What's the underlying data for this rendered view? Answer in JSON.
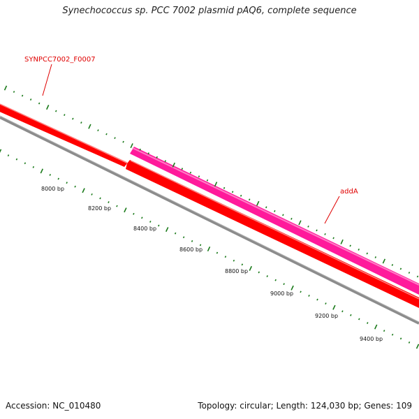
{
  "title": "Synechococcus sp. PCC 7002 plasmid pAQ6, complete sequence",
  "footer": {
    "accession": "Accession: NC_010480",
    "summary": "Topology: circular; Length: 124,030 bp; Genes: 109"
  },
  "colors": {
    "background": "#ffffff",
    "backbone": "#8c8c8c",
    "forward_gene": "#ff0000",
    "reverse_gene": "#ff1a9b",
    "tick": "#1a7a1a",
    "label": "#e00000"
  },
  "genes": [
    {
      "name": "SYNPCC7002_F0007",
      "strand": "forward",
      "color": "#ff0000"
    },
    {
      "name": "addA",
      "strand": "reverse",
      "color": "#ff1a9b"
    }
  ],
  "scale_labels": [
    "8000 bp",
    "8200 bp",
    "8400 bp",
    "8600 bp",
    "8800 bp",
    "9000 bp",
    "9200 bp",
    "9400 bp"
  ]
}
